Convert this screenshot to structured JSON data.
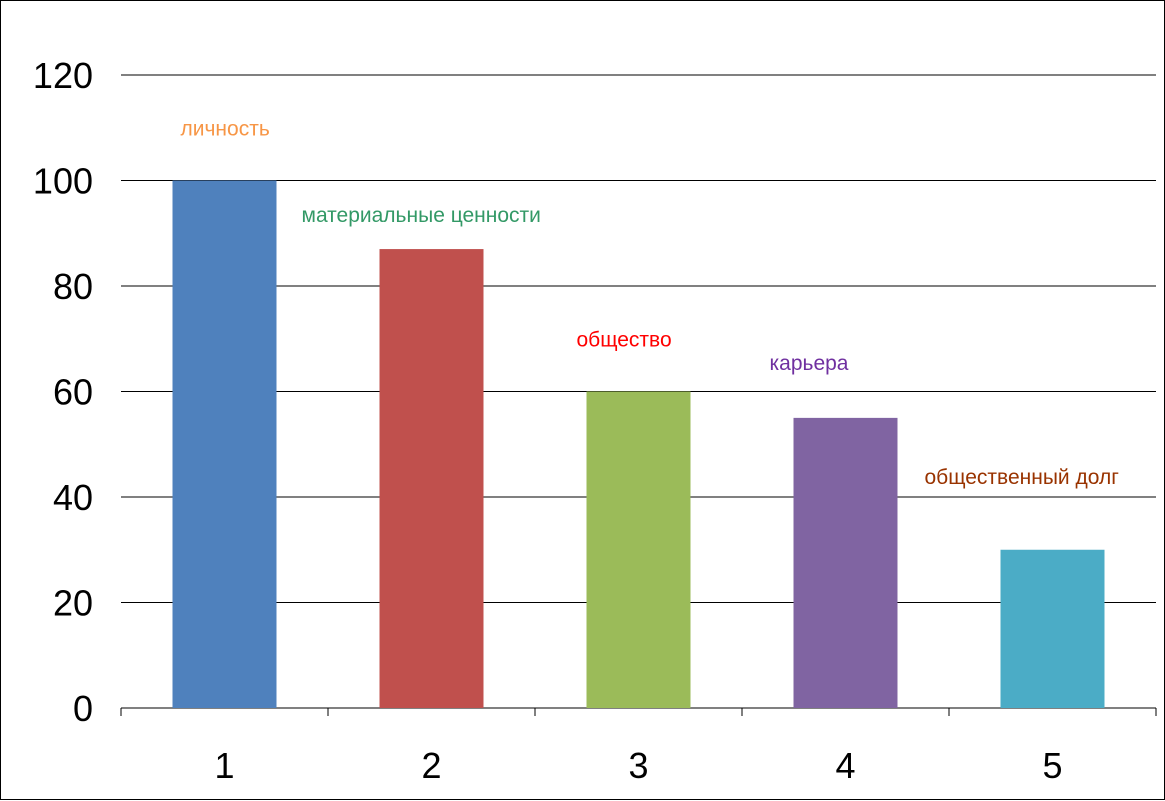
{
  "chart_data": {
    "type": "bar",
    "title": "",
    "xlabel": "",
    "ylabel": "",
    "categories": [
      "1",
      "2",
      "3",
      "4",
      "5"
    ],
    "values": [
      100,
      87,
      60,
      55,
      30
    ],
    "ylim": [
      0,
      120
    ],
    "yticks": [
      0,
      20,
      40,
      60,
      80,
      100,
      120
    ],
    "grid": true,
    "bar_colors": [
      "#4F81BD",
      "#C0504D",
      "#9BBB59",
      "#8064A2",
      "#4BACC6"
    ],
    "annotations": [
      {
        "text": "личность",
        "color": "#F79646"
      },
      {
        "text": "материальные ценности",
        "color": "#339966"
      },
      {
        "text": "общество",
        "color": "#FF0000"
      },
      {
        "text": "карьера",
        "color": "#7030A0"
      },
      {
        "text": "общественный долг",
        "color": "#993300"
      }
    ]
  }
}
